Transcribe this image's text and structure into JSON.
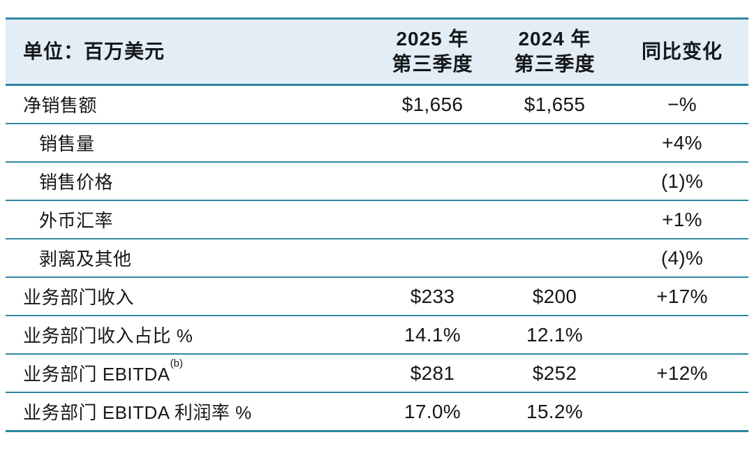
{
  "colors": {
    "accent_border": "#2d87a0",
    "header_bg": "#e2edf6",
    "text": "#15181a",
    "page_bg": "#ffffff"
  },
  "table": {
    "unit_label": "单位：百万美元",
    "columns": [
      {
        "key": "q3_2025",
        "line1": "2025 年",
        "line2": "第三季度"
      },
      {
        "key": "q3_2024",
        "line1": "2024 年",
        "line2": "第三季度"
      },
      {
        "key": "yoy",
        "line1": "同比变化",
        "line2": ""
      }
    ],
    "rows": [
      {
        "label": "净销售额",
        "indent": false,
        "sup": "",
        "q3_2025": "$1,656",
        "q3_2024": "$1,655",
        "yoy": "−%"
      },
      {
        "label": "销售量",
        "indent": true,
        "sup": "",
        "q3_2025": "",
        "q3_2024": "",
        "yoy": "+4%"
      },
      {
        "label": "销售价格",
        "indent": true,
        "sup": "",
        "q3_2025": "",
        "q3_2024": "",
        "yoy": "(1)%"
      },
      {
        "label": "外币汇率",
        "indent": true,
        "sup": "",
        "q3_2025": "",
        "q3_2024": "",
        "yoy": "+1%"
      },
      {
        "label": "剥离及其他",
        "indent": true,
        "sup": "",
        "q3_2025": "",
        "q3_2024": "",
        "yoy": "(4)%"
      },
      {
        "label": "业务部门收入",
        "indent": false,
        "sup": "",
        "q3_2025": "$233",
        "q3_2024": "$200",
        "yoy": "+17%"
      },
      {
        "label": "业务部门收入占比 %",
        "indent": false,
        "sup": "",
        "q3_2025": "14.1%",
        "q3_2024": "12.1%",
        "yoy": ""
      },
      {
        "label": "业务部门 EBITDA",
        "indent": false,
        "sup": "(b)",
        "q3_2025": "$281",
        "q3_2024": "$252",
        "yoy": "+12%"
      },
      {
        "label": "业务部门 EBITDA 利润率 %",
        "indent": false,
        "sup": "",
        "q3_2025": "17.0%",
        "q3_2024": "15.2%",
        "yoy": ""
      }
    ]
  }
}
